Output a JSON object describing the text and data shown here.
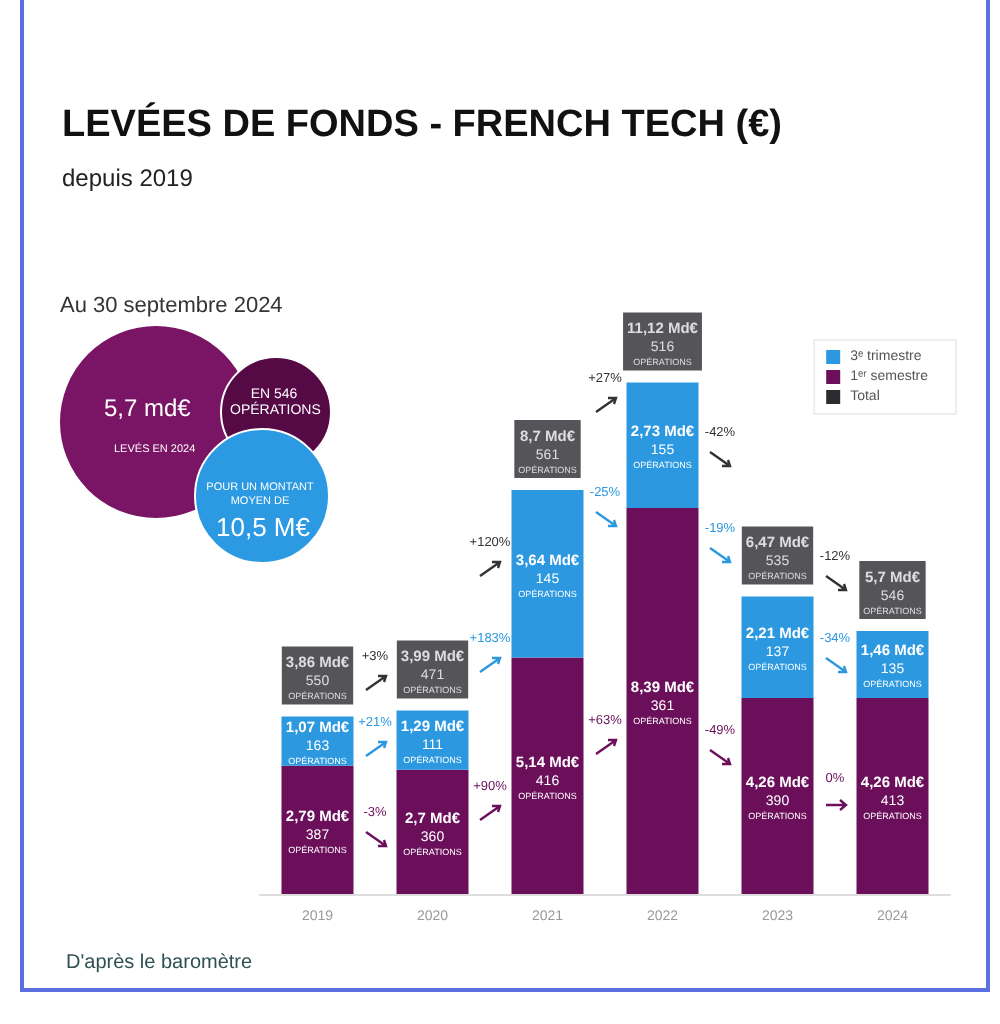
{
  "chart_data": {
    "type": "bar",
    "title": "LEVÉES DE FONDS - FRENCH TECH (€)",
    "subtitle": "depuis 2019",
    "stacked": true,
    "categories": [
      "2019",
      "2020",
      "2021",
      "2022",
      "2023",
      "2024"
    ],
    "series": [
      {
        "name": "1ᵉʳ semestre",
        "color": "#6b0f5b",
        "values": [
          2.79,
          2.7,
          5.14,
          8.39,
          4.26,
          4.26
        ],
        "value_labels": [
          "2,79 Md€\n387\nOPÉRATIONS",
          "2,7 Md€\n360\nOPÉRATIONS",
          "5,14 Md€\n416\nOPÉRATIONS",
          "8,39 Md€\n361\nOPÉRATIONS",
          "4,26 Md€\n390\nOPÉRATIONS",
          "4,26 Md€\n413\nOPÉRATIONS"
        ]
      },
      {
        "name": "3ᵉ trimestre",
        "color": "#2c98e0",
        "values": [
          1.07,
          1.29,
          3.64,
          2.73,
          2.21,
          1.46
        ],
        "value_labels": [
          "1,07 Md€\n163\nOPÉRATIONS",
          "1,29 Md€\n111\nOPÉRATIONS",
          "3,64 Md€\n145\nOPÉRATIONS",
          "2,73 Md€\n155\nOPÉRATIONS",
          "2,21 Md€\n137\nOPÉRATIONS",
          "1,46 Md€\n135\nOPÉRATIONS"
        ]
      },
      {
        "name": "Total",
        "color": "#2b2b30",
        "values": [
          null,
          null,
          null,
          null,
          null,
          null
        ]
      }
    ],
    "totals": [
      "3,86 Md€\n550\nOPÉRATIONS",
      "3,99 Md€\n471\nOPÉRATIONS",
      "8,7 Md€\n561\nOPÉRATIONS",
      "11,12 Md€\n516\nOPÉRATIONS",
      "6,47 Md€\n535\nOPÉRATIONS",
      "5,7 Md€\n546\nOPÉRATIONS"
    ],
    "legend": "top right",
    "grid": false,
    "annotations": [
      "Au 30 septembre 2024",
      "5,7 md€",
      "LEVÉS EN 2024",
      "EN 546 OPÉRATIONS",
      "POUR UN MONTANT MOYEN DE",
      "10,5 M€",
      "+3%",
      "+21%",
      "-3%",
      "+120%",
      "+183%",
      "+90%",
      "+27%",
      "-25%",
      "+63%",
      "-42%",
      "-19%",
      "-49%",
      "-12%",
      "-34%",
      "0%",
      "D'après le baromètre"
    ]
  }
}
